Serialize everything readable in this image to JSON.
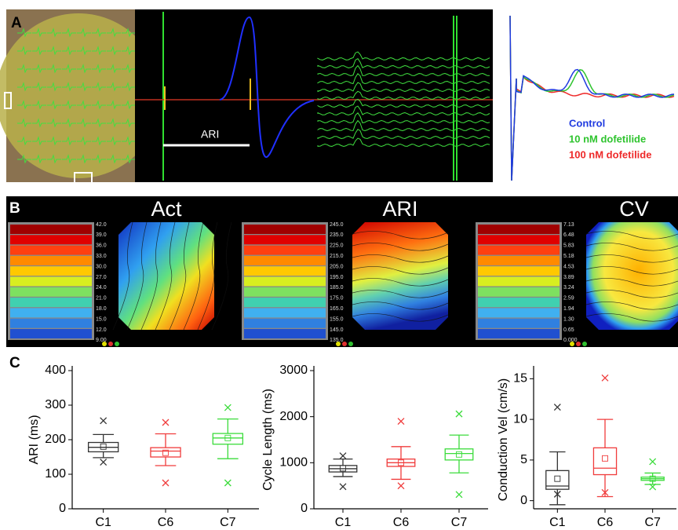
{
  "panels": {
    "a": {
      "label": "A",
      "ari_label": "ARI",
      "legend": [
        {
          "name": "Control",
          "color": "#1f3ae0"
        },
        {
          "name": "10 nM dofetilide",
          "color": "#2fc42f"
        },
        {
          "name": "100 nM dofetilide",
          "color": "#ee2a2a"
        }
      ]
    },
    "b": {
      "label": "B",
      "maps": [
        {
          "title": "Act",
          "scale": [
            "42.0",
            "39.0",
            "36.0",
            "33.0",
            "30.0",
            "27.0",
            "24.0",
            "21.0",
            "18.0",
            "15.0",
            "12.0",
            "9.00"
          ]
        },
        {
          "title": "ARI",
          "scale": [
            "245.0",
            "235.0",
            "225.0",
            "215.0",
            "205.0",
            "195.0",
            "185.0",
            "175.0",
            "165.0",
            "155.0",
            "145.0",
            "135.0"
          ]
        },
        {
          "title": "CV",
          "scale": [
            "7.13",
            "6.48",
            "5.83",
            "5.18",
            "4.53",
            "3.89",
            "3.24",
            "2.59",
            "1.94",
            "1.30",
            "0.65",
            "0.000"
          ]
        }
      ]
    },
    "c": {
      "label": "C"
    }
  },
  "chart_data": [
    {
      "type": "box",
      "ylabel": "ARI (ms)",
      "categories": [
        "C1",
        "C6",
        "C7"
      ],
      "colors": [
        "#333333",
        "#f03c3c",
        "#3bdc3b"
      ],
      "ylim": [
        0,
        400
      ],
      "yticks": [
        0,
        100,
        200,
        300,
        400
      ],
      "whisker_low": [
        148,
        125,
        145
      ],
      "q1": [
        165,
        150,
        187
      ],
      "median": [
        178,
        167,
        205
      ],
      "q3": [
        192,
        177,
        218
      ],
      "whisker_high": [
        215,
        217,
        260
      ],
      "mean": [
        180,
        162,
        205
      ],
      "min": [
        135,
        75,
        75
      ],
      "max": [
        255,
        250,
        293
      ]
    },
    {
      "type": "box",
      "ylabel": "Cycle Length (ms)",
      "categories": [
        "C1",
        "C6",
        "C7"
      ],
      "colors": [
        "#333333",
        "#f03c3c",
        "#3bdc3b"
      ],
      "ylim": [
        0,
        3000
      ],
      "yticks": [
        0,
        1000,
        2000,
        3000
      ],
      "whisker_low": [
        700,
        640,
        780
      ],
      "q1": [
        800,
        920,
        1060
      ],
      "median": [
        870,
        1000,
        1200
      ],
      "q3": [
        940,
        1080,
        1300
      ],
      "whisker_high": [
        1080,
        1350,
        1600
      ],
      "mean": [
        880,
        1000,
        1180
      ],
      "min": [
        480,
        500,
        310
      ],
      "max": [
        1150,
        1900,
        2060
      ]
    },
    {
      "type": "box",
      "ylabel": "Conduction Vel (cm/s)",
      "categories": [
        "C1",
        "C6",
        "C7"
      ],
      "colors": [
        "#333333",
        "#f03c3c",
        "#3bdc3b"
      ],
      "ylim": [
        -1,
        16
      ],
      "yticks": [
        0,
        5,
        10,
        15
      ],
      "whisker_low": [
        -0.5,
        0.5,
        2.0
      ],
      "q1": [
        1.4,
        3.2,
        2.5
      ],
      "median": [
        1.8,
        4,
        2.7
      ],
      "q3": [
        3.7,
        6.5,
        2.9
      ],
      "whisker_high": [
        6,
        10,
        3.4
      ],
      "mean": [
        2.7,
        5.2,
        2.7
      ],
      "min": [
        0.8,
        1,
        1.7
      ],
      "max": [
        11.5,
        15.1,
        4.8
      ]
    }
  ]
}
